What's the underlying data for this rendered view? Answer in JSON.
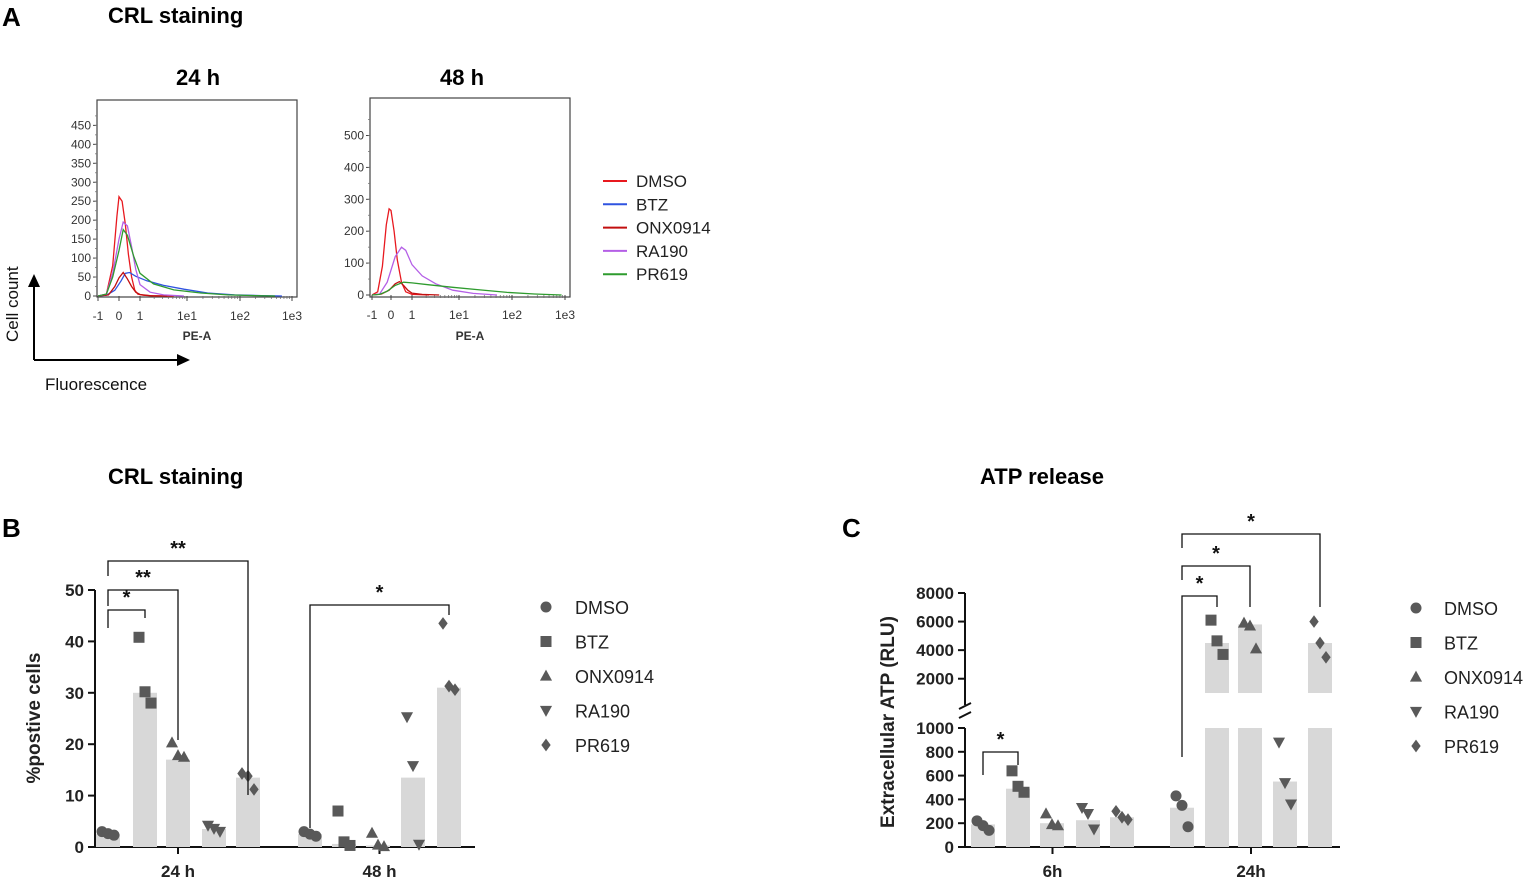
{
  "figure": {
    "panel_labels": [
      "A",
      "B",
      "C"
    ],
    "titles": {
      "a": "CRL staining",
      "b": "CRL staining",
      "c": "ATP release"
    },
    "arrow_labels": {
      "y": "Cell count",
      "x": "Fluorescence"
    }
  },
  "colors": {
    "DMSO": "#e8191f",
    "BTZ": "#2f53e0",
    "ONX0914": "#c20f0f",
    "RA190": "#b45fe6",
    "PR619": "#2e9b2e",
    "bar": "#d8d8d8",
    "marker": "#595959"
  },
  "chart_data": [
    {
      "id": "hist_24h",
      "type": "line",
      "title": "24 h",
      "xlabel": "PE-A",
      "ylabel": "",
      "ylim": [
        0,
        480
      ],
      "yticks": [
        "0",
        "50",
        "100",
        "150",
        "200",
        "250",
        "300",
        "350",
        "400",
        "450"
      ],
      "xticks": [
        "-1",
        "0",
        "1",
        "1e1",
        "1e2",
        "1e3"
      ],
      "series": [
        {
          "name": "DMSO",
          "x": [
            -1.0,
            -0.6,
            -0.3,
            -0.1,
            0.0,
            0.15,
            0.3,
            0.45,
            0.6,
            0.75,
            0.9,
            1.1,
            1.4,
            2.0
          ],
          "y": [
            0,
            5,
            80,
            210,
            262,
            250,
            190,
            110,
            50,
            15,
            5,
            2,
            0,
            0
          ]
        },
        {
          "name": "BTZ",
          "x": [
            -1.0,
            -0.6,
            -0.2,
            0.1,
            0.3,
            0.5,
            0.8,
            1.2,
            1.7,
            2.3,
            3.0,
            3.8,
            4.6,
            5.2
          ],
          "y": [
            0,
            2,
            15,
            40,
            60,
            62,
            52,
            40,
            28,
            18,
            8,
            3,
            1,
            0
          ]
        },
        {
          "name": "ONX0914",
          "x": [
            -1.0,
            -0.5,
            -0.2,
            0.0,
            0.2,
            0.4,
            0.6,
            0.8,
            1.0,
            1.3,
            1.8
          ],
          "y": [
            0,
            3,
            25,
            48,
            62,
            45,
            25,
            10,
            4,
            1,
            0
          ]
        },
        {
          "name": "RA190",
          "x": [
            -1.0,
            -0.6,
            -0.3,
            0.0,
            0.2,
            0.4,
            0.6,
            0.8,
            1.0,
            1.3,
            1.7,
            2.3
          ],
          "y": [
            0,
            5,
            60,
            150,
            195,
            185,
            130,
            70,
            30,
            10,
            3,
            0
          ]
        },
        {
          "name": "PR619",
          "x": [
            -1.0,
            -0.6,
            -0.3,
            0.0,
            0.2,
            0.4,
            0.7,
            1.0,
            1.4,
            2.0,
            2.8,
            3.6,
            4.4,
            5.0
          ],
          "y": [
            0,
            5,
            50,
            120,
            175,
            160,
            105,
            60,
            32,
            16,
            8,
            3,
            1,
            0
          ]
        }
      ]
    },
    {
      "id": "hist_48h",
      "type": "line",
      "title": "48 h",
      "xlabel": "PE-A",
      "ylabel": "",
      "ylim": [
        0,
        580
      ],
      "yticks": [
        "0",
        "100",
        "200",
        "300",
        "400",
        "500"
      ],
      "xticks": [
        "-1",
        "0",
        "1",
        "1e1",
        "1e2",
        "1e3"
      ],
      "series": [
        {
          "name": "DMSO",
          "x": [
            -1.0,
            -0.7,
            -0.45,
            -0.25,
            -0.1,
            0.0,
            0.15,
            0.3,
            0.5,
            0.7,
            1.0,
            1.5
          ],
          "y": [
            0,
            10,
            90,
            220,
            270,
            265,
            200,
            110,
            40,
            10,
            2,
            0
          ]
        },
        {
          "name": "ONX0914",
          "x": [
            -1.0,
            -0.5,
            -0.1,
            0.2,
            0.4,
            0.6,
            0.8,
            1.0,
            1.3,
            1.8
          ],
          "y": [
            0,
            3,
            15,
            35,
            42,
            30,
            15,
            6,
            2,
            0
          ]
        },
        {
          "name": "RA190",
          "x": [
            -1.0,
            -0.6,
            -0.2,
            0.2,
            0.5,
            0.7,
            1.0,
            1.3,
            1.7,
            2.2,
            2.8,
            3.5
          ],
          "y": [
            0,
            3,
            40,
            120,
            150,
            140,
            95,
            60,
            35,
            15,
            5,
            0
          ]
        },
        {
          "name": "PR619",
          "x": [
            -1.0,
            -0.6,
            -0.2,
            0.2,
            0.6,
            1.0,
            1.5,
            2.2,
            3.0,
            3.8,
            4.6,
            5.4
          ],
          "y": [
            0,
            2,
            12,
            30,
            40,
            38,
            32,
            24,
            16,
            8,
            3,
            0
          ]
        }
      ]
    },
    {
      "id": "crl_bar",
      "type": "bar",
      "title": "CRL staining",
      "xlabel": "",
      "ylabel": "%postive cells",
      "ylim": [
        0,
        50
      ],
      "yticks": [
        "0",
        "10",
        "20",
        "30",
        "40",
        "50"
      ],
      "categories": [
        "24 h",
        "48 h"
      ],
      "series": [
        {
          "name": "DMSO",
          "marker": "circle",
          "values": [
            2.5,
            2.5
          ],
          "points": [
            [
              3.0,
              2.6,
              2.3
            ],
            [
              3.0,
              2.5,
              2.1
            ]
          ]
        },
        {
          "name": "BTZ",
          "marker": "square",
          "values": [
            30,
            0.6
          ],
          "points": [
            [
              40.8,
              30.2,
              28.0
            ],
            [
              7.0,
              1.0,
              0.3
            ]
          ]
        },
        {
          "name": "ONX0914",
          "marker": "triangle",
          "values": [
            17,
            0.3
          ],
          "points": [
            [
              20.3,
              17.8,
              17.5
            ],
            [
              2.7,
              0.4,
              0.1
            ]
          ]
        },
        {
          "name": "RA190",
          "marker": "triangle-down",
          "values": [
            3.5,
            13.5
          ],
          "points": [
            [
              4.2,
              3.6,
              3.0
            ],
            [
              25.3,
              15.8,
              0.5
            ]
          ]
        },
        {
          "name": "PR619",
          "marker": "diamond",
          "values": [
            13.5,
            31
          ],
          "points": [
            [
              14.3,
              13.8,
              11.2
            ],
            [
              43.5,
              31.3,
              30.6
            ]
          ]
        }
      ],
      "significance": [
        "*",
        "**",
        "**",
        "*"
      ]
    },
    {
      "id": "atp_bar",
      "type": "bar",
      "title": "ATP release",
      "xlabel": "",
      "ylabel": "Extracellular ATP (RLU)",
      "ylim_lower": [
        0,
        1000
      ],
      "ylim_upper": [
        1000,
        8000
      ],
      "yticks": [
        "0",
        "200",
        "400",
        "600",
        "800",
        "1000",
        "2000",
        "4000",
        "6000",
        "8000"
      ],
      "categories": [
        "6h",
        "24h"
      ],
      "series": [
        {
          "name": "DMSO",
          "marker": "circle",
          "values": [
            190,
            330
          ],
          "points": [
            [
              220,
              180,
              140
            ],
            [
              430,
              350,
              170
            ]
          ]
        },
        {
          "name": "BTZ",
          "marker": "square",
          "values": [
            490,
            4500
          ],
          "points": [
            [
              640,
              510,
              460
            ],
            [
              6100,
              4650,
              3700
            ]
          ]
        },
        {
          "name": "ONX0914",
          "marker": "triangle",
          "values": [
            200,
            5800
          ],
          "points": [
            [
              280,
              190,
              180
            ],
            [
              5900,
              5700,
              4100
            ]
          ]
        },
        {
          "name": "RA190",
          "marker": "triangle-down",
          "values": [
            225,
            550
          ],
          "points": [
            [
              330,
              280,
              150
            ],
            [
              880,
              540,
              360
            ]
          ]
        },
        {
          "name": "PR619",
          "marker": "diamond",
          "values": [
            250,
            4500
          ],
          "points": [
            [
              300,
              250,
              230
            ],
            [
              6000,
              4500,
              3500
            ]
          ]
        }
      ],
      "significance": [
        "*",
        "*",
        "*",
        "*"
      ]
    }
  ],
  "legend_a": [
    "DMSO",
    "BTZ",
    "ONX0914",
    "RA190",
    "PR619"
  ],
  "legend_b": [
    "DMSO",
    "BTZ",
    "ONX0914",
    "RA190",
    "PR619"
  ]
}
